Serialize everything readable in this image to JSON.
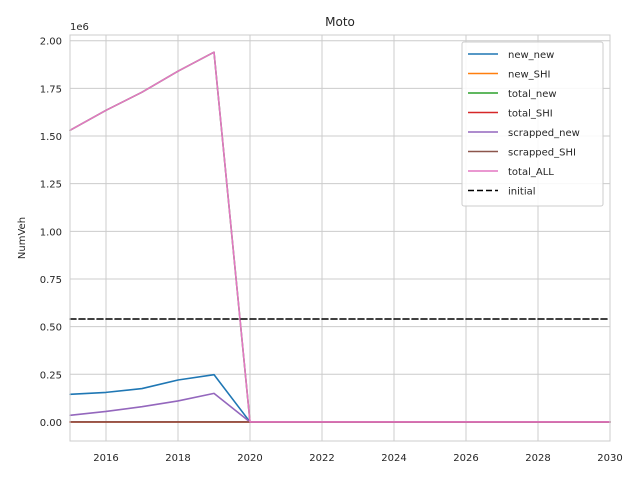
{
  "chart_data": {
    "type": "line",
    "title": "Moto",
    "xlabel": "",
    "ylabel": "NumVeh",
    "y_offset_label": "1e6",
    "xlim": [
      2015,
      2030
    ],
    "ylim": [
      -0.1,
      2.03
    ],
    "y_scale_factor": 1000000,
    "x_ticks": [
      2016,
      2018,
      2020,
      2022,
      2024,
      2026,
      2028,
      2030
    ],
    "y_ticks": [
      0.0,
      0.25,
      0.5,
      0.75,
      1.0,
      1.25,
      1.5,
      1.75,
      2.0
    ],
    "y_tick_labels": [
      "0.00",
      "0.25",
      "0.50",
      "0.75",
      "1.00",
      "1.25",
      "1.50",
      "1.75",
      "2.00"
    ],
    "grid": true,
    "legend_position": "top-right",
    "x": [
      2015,
      2016,
      2017,
      2018,
      2019,
      2020,
      2021,
      2022,
      2023,
      2024,
      2025,
      2026,
      2027,
      2028,
      2029,
      2030
    ],
    "series": [
      {
        "name": "new_new",
        "color": "#1f77b4",
        "dashed": false,
        "values": [
          0.145,
          0.155,
          0.175,
          0.22,
          0.248,
          0,
          0,
          0,
          0,
          0,
          0,
          0,
          0,
          0,
          0,
          0
        ]
      },
      {
        "name": "new_SHI",
        "color": "#ff7f0e",
        "dashed": false,
        "values": [
          0,
          0,
          0,
          0,
          0,
          0,
          0,
          0,
          0,
          0,
          0,
          0,
          0,
          0,
          0,
          0
        ]
      },
      {
        "name": "total_new",
        "color": "#2ca02c",
        "dashed": false,
        "values": [
          1.53,
          1.635,
          1.73,
          1.84,
          1.94,
          0,
          0,
          0,
          0,
          0,
          0,
          0,
          0,
          0,
          0,
          0
        ]
      },
      {
        "name": "total_SHI",
        "color": "#d62728",
        "dashed": false,
        "values": [
          0,
          0,
          0,
          0,
          0,
          0,
          0,
          0,
          0,
          0,
          0,
          0,
          0,
          0,
          0,
          0
        ]
      },
      {
        "name": "scrapped_new",
        "color": "#9467bd",
        "dashed": false,
        "values": [
          0.035,
          0.055,
          0.08,
          0.11,
          0.15,
          0,
          0,
          0,
          0,
          0,
          0,
          0,
          0,
          0,
          0,
          0
        ]
      },
      {
        "name": "scrapped_SHI",
        "color": "#8c564b",
        "dashed": false,
        "values": [
          0,
          0,
          0,
          0,
          0,
          0,
          0,
          0,
          0,
          0,
          0,
          0,
          0,
          0,
          0,
          0
        ]
      },
      {
        "name": "total_ALL",
        "color": "#e377c2",
        "dashed": false,
        "values": [
          1.53,
          1.635,
          1.73,
          1.84,
          1.94,
          0,
          0,
          0,
          0,
          0,
          0,
          0,
          0,
          0,
          0,
          0
        ]
      },
      {
        "name": "initial",
        "color": "#000000",
        "dashed": true,
        "values": [
          0.54,
          0.54,
          0.54,
          0.54,
          0.54,
          0.54,
          0.54,
          0.54,
          0.54,
          0.54,
          0.54,
          0.54,
          0.54,
          0.54,
          0.54,
          0.54
        ]
      }
    ]
  }
}
